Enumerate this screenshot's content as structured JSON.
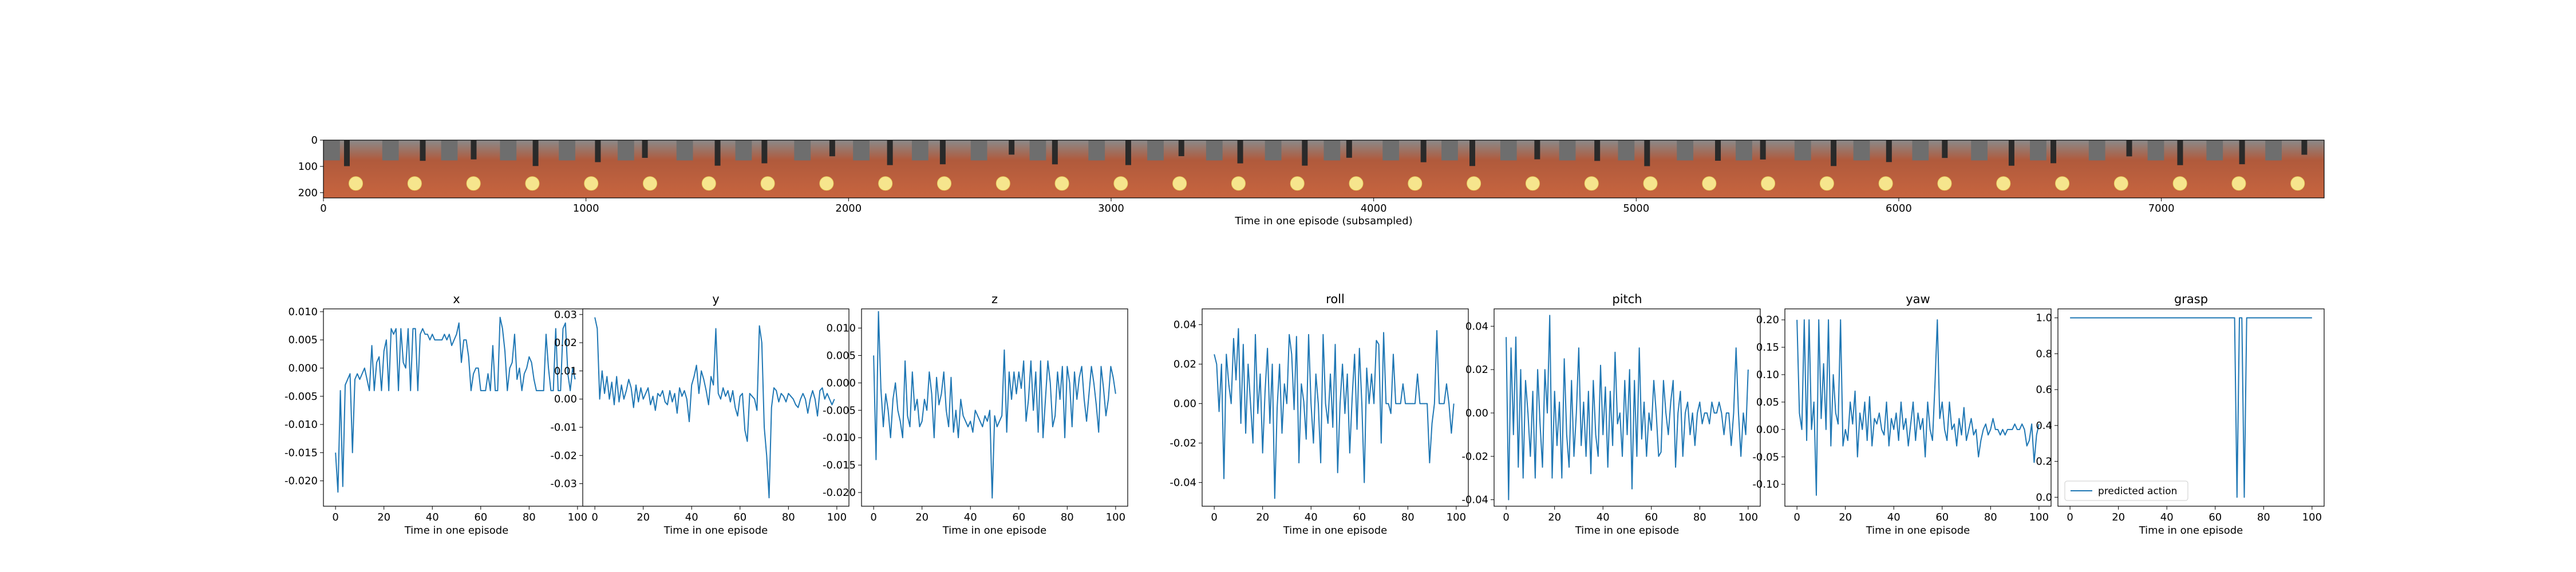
{
  "chart_data": [
    {
      "type": "image",
      "xlabel": "Time in one episode (subsampled)",
      "xlim": [
        0,
        7620
      ],
      "ylim": [
        220,
        0
      ],
      "xticks": [
        "0",
        "1000",
        "2000",
        "3000",
        "4000",
        "5000",
        "6000",
        "7000"
      ],
      "yticks": [
        "0",
        "100",
        "200"
      ],
      "frame_count": 34
    },
    {
      "type": "line",
      "title": "x",
      "xlabel": "Time in one episode",
      "xlim": [
        -5,
        105
      ],
      "ylim": [
        -0.0245,
        0.0105
      ],
      "xticks": [
        "0",
        "20",
        "40",
        "60",
        "80",
        "100"
      ],
      "yticks": [
        "-0.020",
        "-0.015",
        "-0.010",
        "-0.005",
        "0.000",
        "0.005",
        "0.010"
      ],
      "values": [
        -0.015,
        -0.022,
        -0.004,
        -0.021,
        -0.003,
        -0.002,
        -0.001,
        -0.015,
        -0.002,
        -0.001,
        -0.002,
        -0.001,
        0.0,
        -0.002,
        -0.004,
        0.004,
        -0.004,
        0.001,
        0.002,
        -0.004,
        0.003,
        0.005,
        -0.004,
        0.007,
        0.006,
        0.007,
        -0.004,
        0.007,
        0.001,
        0.0,
        0.007,
        -0.004,
        0.007,
        0.007,
        -0.004,
        0.006,
        0.007,
        0.006,
        0.006,
        0.005,
        0.006,
        0.005,
        0.005,
        0.005,
        0.005,
        0.006,
        0.005,
        0.006,
        0.004,
        0.005,
        0.006,
        0.008,
        0.001,
        0.005,
        0.005,
        0.002,
        -0.004,
        -0.001,
        0.0,
        0.0,
        -0.004,
        -0.004,
        -0.004,
        -0.001,
        -0.004,
        0.004,
        -0.004,
        -0.004,
        0.009,
        0.007,
        0.003,
        -0.004,
        0.0,
        0.001,
        0.006,
        -0.002,
        0.0,
        -0.004,
        -0.001,
        0.0,
        0.002,
        0.001,
        -0.002,
        -0.004,
        -0.004,
        -0.004,
        -0.004,
        0.006,
        0.0,
        -0.004,
        -0.004,
        0.007,
        -0.004,
        -0.004,
        0.007,
        0.008,
        -0.001,
        -0.004,
        0.0,
        -0.002
      ]
    },
    {
      "type": "line",
      "title": "y",
      "xlabel": "Time in one episode",
      "xlim": [
        -5,
        105
      ],
      "ylim": [
        -0.038,
        0.032
      ],
      "xticks": [
        "0",
        "20",
        "40",
        "60",
        "80",
        "100"
      ],
      "yticks": [
        "-0.03",
        "-0.02",
        "-0.01",
        "0.00",
        "0.01",
        "0.02",
        "0.03"
      ],
      "values": [
        0.029,
        0.025,
        0.0,
        0.01,
        0.002,
        0.008,
        0.0,
        0.006,
        -0.002,
        0.008,
        -0.001,
        0.005,
        0.0,
        0.003,
        0.007,
        0.004,
        -0.003,
        0.005,
        -0.001,
        0.004,
        0.0,
        0.002,
        0.004,
        -0.002,
        0.001,
        -0.004,
        0.002,
        0.001,
        0.003,
        -0.001,
        -0.002,
        0.003,
        -0.001,
        0.002,
        -0.005,
        0.004,
        0.001,
        0.003,
        0.0,
        -0.008,
        0.005,
        0.008,
        0.012,
        0.002,
        0.01,
        0.007,
        0.003,
        -0.002,
        0.008,
        0.005,
        0.025,
        0.002,
        0.0,
        0.004,
        0.001,
        0.003,
        -0.001,
        0.003,
        -0.003,
        -0.006,
        0.001,
        0.002,
        -0.011,
        -0.015,
        0.002,
        0.001,
        0.0,
        -0.004,
        0.026,
        0.02,
        -0.01,
        -0.02,
        -0.035,
        -0.003,
        0.004,
        0.003,
        -0.001,
        0.002,
        0.001,
        -0.001,
        0.002,
        0.001,
        0.0,
        -0.002,
        -0.003,
        0.0,
        0.002,
        0.0,
        -0.005,
        0.0,
        0.003,
        0.0,
        -0.006,
        0.003,
        0.004,
        0.0,
        0.002,
        0.0,
        -0.002,
        0.0
      ]
    },
    {
      "type": "line",
      "title": "z",
      "xlabel": "Time in one episode",
      "xlim": [
        -5,
        105
      ],
      "ylim": [
        -0.0225,
        0.0135
      ],
      "xticks": [
        "0",
        "20",
        "40",
        "60",
        "80",
        "100"
      ],
      "yticks": [
        "-0.020",
        "-0.015",
        "-0.010",
        "-0.005",
        "0.000",
        "0.005",
        "0.010"
      ],
      "values": [
        0.005,
        -0.014,
        0.013,
        -0.001,
        -0.008,
        -0.002,
        -0.005,
        -0.01,
        -0.003,
        0.0,
        -0.005,
        -0.007,
        -0.01,
        0.004,
        -0.006,
        -0.008,
        0.002,
        -0.005,
        -0.003,
        -0.008,
        -0.007,
        -0.003,
        -0.005,
        0.002,
        -0.002,
        -0.01,
        0.001,
        -0.004,
        -0.002,
        0.002,
        -0.005,
        -0.008,
        0.001,
        -0.009,
        -0.005,
        -0.01,
        -0.003,
        -0.006,
        -0.007,
        -0.008,
        -0.007,
        -0.009,
        -0.005,
        -0.006,
        -0.007,
        -0.008,
        -0.006,
        -0.007,
        -0.005,
        -0.021,
        -0.006,
        -0.008,
        -0.007,
        -0.006,
        0.006,
        -0.009,
        0.002,
        -0.003,
        0.002,
        -0.002,
        0.002,
        -0.001,
        0.004,
        -0.007,
        -0.003,
        0.004,
        -0.005,
        0.002,
        -0.009,
        0.004,
        -0.01,
        -0.003,
        0.004,
        0.0,
        -0.008,
        -0.006,
        0.002,
        -0.003,
        0.003,
        -0.01,
        0.003,
        0.0,
        -0.008,
        0.002,
        -0.003,
        0.001,
        0.003,
        -0.003,
        -0.007,
        -0.002,
        0.003,
        0.0,
        -0.004,
        -0.009,
        0.003,
        -0.001,
        -0.006,
        -0.003,
        0.003,
        0.001,
        -0.002
      ]
    },
    {
      "type": "line",
      "title": "roll",
      "xlabel": "Time in one episode",
      "xlim": [
        -5,
        105
      ],
      "ylim": [
        -0.052,
        0.048
      ],
      "xticks": [
        "0",
        "20",
        "40",
        "60",
        "80",
        "100"
      ],
      "yticks": [
        "-0.04",
        "-0.02",
        "0.00",
        "0.02",
        "0.04"
      ],
      "values": [
        0.025,
        0.02,
        -0.004,
        0.02,
        -0.038,
        0.025,
        0.01,
        0.0,
        0.033,
        0.012,
        0.038,
        -0.01,
        0.03,
        -0.015,
        0.02,
        0.0,
        -0.02,
        0.035,
        -0.005,
        0.015,
        -0.025,
        0.006,
        0.028,
        -0.01,
        0.02,
        -0.048,
        -0.002,
        0.02,
        -0.015,
        0.01,
        0.0,
        0.035,
        0.025,
        -0.003,
        0.034,
        -0.03,
        0.01,
        0.001,
        -0.018,
        0.035,
        0.0,
        -0.02,
        0.015,
        0.0,
        -0.03,
        0.035,
        0.0,
        -0.01,
        0.015,
        -0.012,
        0.03,
        -0.035,
        0.0,
        0.02,
        -0.005,
        0.015,
        -0.025,
        0.003,
        0.025,
        -0.013,
        0.028,
        0.0,
        -0.04,
        0.018,
        0.0,
        0.015,
        0.0,
        0.032,
        0.03,
        -0.02,
        0.036,
        0.0,
        0.0,
        -0.005,
        0.025,
        0.0,
        0.0,
        0.0,
        0.01,
        0.0,
        0.0,
        0.0,
        0.0,
        0.0,
        0.015,
        0.0,
        0.0,
        0.0,
        0.0,
        -0.03,
        -0.01,
        0.0,
        0.037,
        0.0,
        0.0,
        0.0,
        0.01,
        0.0,
        -0.015,
        0.0
      ]
    },
    {
      "type": "line",
      "title": "pitch",
      "xlabel": "Time in one episode",
      "xlim": [
        -5,
        105
      ],
      "ylim": [
        -0.043,
        0.048
      ],
      "xticks": [
        "0",
        "20",
        "40",
        "60",
        "80",
        "100"
      ],
      "yticks": [
        "-0.04",
        "-0.02",
        "0.00",
        "0.02",
        "0.04"
      ],
      "values": [
        0.035,
        -0.04,
        0.03,
        -0.01,
        0.035,
        -0.025,
        0.02,
        -0.03,
        0.015,
        0.0,
        -0.02,
        0.01,
        -0.03,
        0.02,
        -0.005,
        -0.025,
        0.02,
        0.0,
        0.045,
        -0.03,
        0.01,
        -0.015,
        0.005,
        -0.03,
        0.025,
        -0.01,
        -0.025,
        0.015,
        -0.02,
        0.0,
        0.03,
        -0.015,
        0.005,
        -0.02,
        0.01,
        -0.028,
        0.015,
        -0.01,
        -0.02,
        0.022,
        -0.01,
        0.012,
        -0.025,
        0.01,
        -0.015,
        0.028,
        -0.005,
        0.0,
        -0.02,
        0.015,
        -0.01,
        0.02,
        -0.035,
        0.015,
        -0.02,
        0.03,
        -0.012,
        0.005,
        -0.02,
        0.0,
        -0.008,
        0.015,
        0.0,
        -0.02,
        -0.018,
        0.015,
        0.0,
        -0.01,
        0.005,
        0.015,
        -0.025,
        0.0,
        0.01,
        -0.02,
        0.0,
        0.005,
        -0.01,
        0.0,
        -0.015,
        0.0,
        0.005,
        -0.005,
        0.0,
        0.0,
        -0.005,
        0.005,
        0.0,
        0.0,
        0.005,
        0.0,
        -0.01,
        0.0,
        0.0,
        -0.015,
        0.0,
        0.03,
        0.0,
        -0.02,
        0.0,
        -0.01,
        0.02
      ]
    },
    {
      "type": "line",
      "title": "yaw",
      "xlabel": "Time in one episode",
      "xlim": [
        -5,
        105
      ],
      "ylim": [
        -0.14,
        0.22
      ],
      "xticks": [
        "0",
        "20",
        "40",
        "60",
        "80",
        "100"
      ],
      "yticks": [
        "-0.10",
        "-0.05",
        "0.00",
        "0.05",
        "0.10",
        "0.15",
        "0.20"
      ],
      "values": [
        0.2,
        0.03,
        0.0,
        0.2,
        -0.02,
        0.2,
        0.0,
        0.05,
        -0.12,
        0.2,
        0.02,
        0.12,
        0.0,
        0.2,
        -0.03,
        0.1,
        0.03,
        0.01,
        0.2,
        -0.03,
        0.0,
        -0.02,
        0.05,
        0.01,
        0.07,
        -0.05,
        0.03,
        0.0,
        0.05,
        -0.02,
        0.06,
        -0.03,
        0.02,
        0.01,
        0.03,
        0.0,
        -0.01,
        0.05,
        -0.03,
        0.02,
        0.0,
        0.03,
        -0.02,
        0.05,
        0.0,
        0.02,
        -0.03,
        0.01,
        0.05,
        -0.02,
        0.03,
        0.0,
        0.02,
        -0.05,
        0.05,
        0.0,
        -0.02,
        0.08,
        0.2,
        0.02,
        0.05,
        0.0,
        -0.02,
        0.05,
        0.0,
        0.01,
        -0.03,
        0.02,
        -0.01,
        0.04,
        -0.02,
        0.0,
        0.02,
        -0.01,
        0.0,
        -0.05,
        -0.02,
        0.0,
        0.01,
        -0.01,
        0.0,
        0.02,
        0.0,
        0.0,
        -0.01,
        0.0,
        -0.01,
        0.0,
        0.0,
        0.0,
        0.01,
        0.0,
        0.0,
        0.01,
        0.0,
        -0.03,
        -0.02,
        0.01,
        -0.06,
        -0.01,
        0.01
      ]
    },
    {
      "type": "line",
      "title": "grasp",
      "xlabel": "Time in one episode",
      "xlim": [
        -5,
        105
      ],
      "ylim": [
        -0.05,
        1.05
      ],
      "xticks": [
        "0",
        "20",
        "40",
        "60",
        "80",
        "100"
      ],
      "yticks": [
        "0.0",
        "0.2",
        "0.4",
        "0.6",
        "0.8",
        "1.0"
      ],
      "x": [
        0,
        68,
        69,
        70,
        71,
        72,
        73,
        74,
        100
      ],
      "values": [
        1,
        1,
        0,
        1,
        1,
        0,
        1,
        1,
        1
      ],
      "legend": [
        "predicted action"
      ],
      "legend_position": "lower-left"
    }
  ]
}
